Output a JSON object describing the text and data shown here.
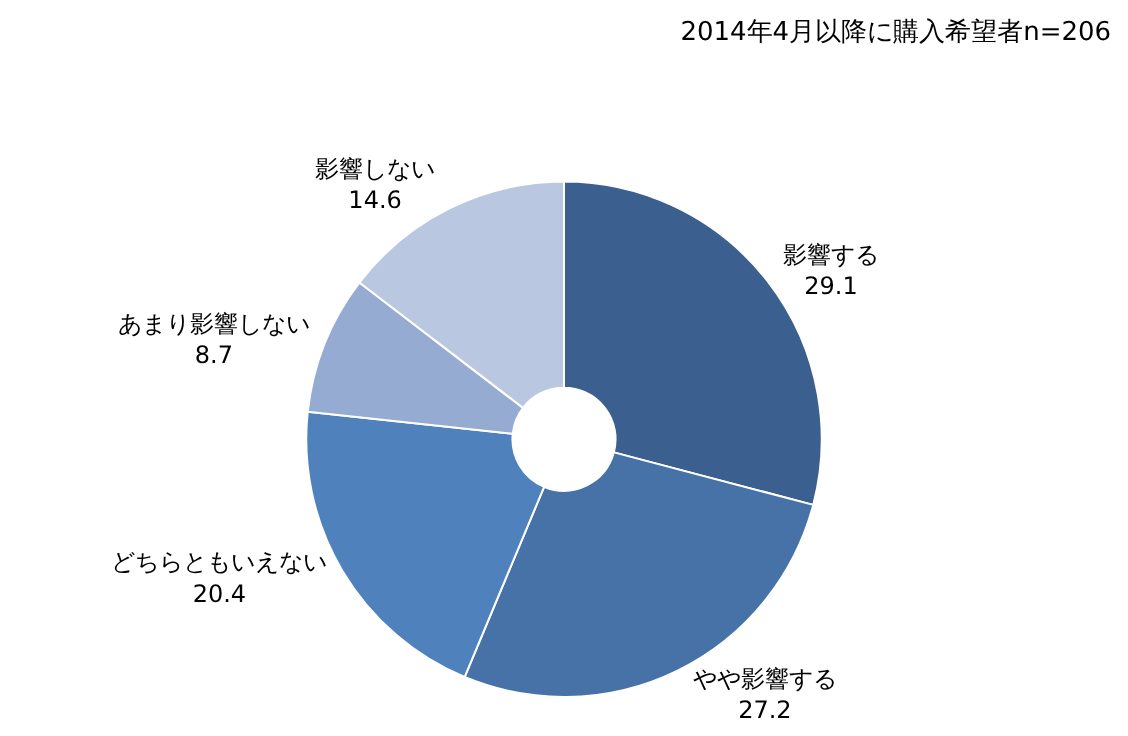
{
  "chart_data": {
    "type": "donut",
    "title": "2014年4月以降に購入希望者n=206",
    "categories": [
      "影響する",
      "やや影響する",
      "どちらともいえない",
      "あまり影響しない",
      "影響しない"
    ],
    "values": [
      29.1,
      27.2,
      20.4,
      8.7,
      14.6
    ],
    "colors": [
      "#3b5f8e",
      "#4672a8",
      "#4f81bd",
      "#95abd2",
      "#b9c7e0"
    ],
    "data_labels": true,
    "legend": false
  }
}
